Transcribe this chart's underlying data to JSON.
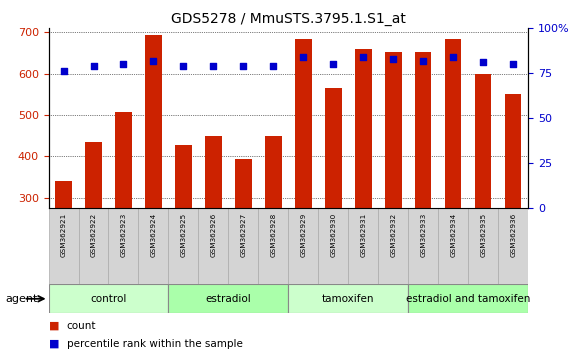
{
  "title": "GDS5278 / MmuSTS.3795.1.S1_at",
  "samples": [
    "GSM362921",
    "GSM362922",
    "GSM362923",
    "GSM362924",
    "GSM362925",
    "GSM362926",
    "GSM362927",
    "GSM362928",
    "GSM362929",
    "GSM362930",
    "GSM362931",
    "GSM362932",
    "GSM362933",
    "GSM362934",
    "GSM362935",
    "GSM362936"
  ],
  "counts": [
    340,
    435,
    507,
    693,
    428,
    450,
    395,
    450,
    685,
    565,
    660,
    653,
    652,
    685,
    600,
    550
  ],
  "percentile_ranks": [
    76,
    79,
    80,
    82,
    79,
    79,
    79,
    79,
    84,
    80,
    84,
    83,
    82,
    84,
    81,
    80
  ],
  "groups": [
    {
      "label": "control",
      "start": 0,
      "end": 4,
      "color": "#ccffcc"
    },
    {
      "label": "estradiol",
      "start": 4,
      "end": 8,
      "color": "#aaffaa"
    },
    {
      "label": "tamoxifen",
      "start": 8,
      "end": 12,
      "color": "#ccffcc"
    },
    {
      "label": "estradiol and tamoxifen",
      "start": 12,
      "end": 16,
      "color": "#aaffaa"
    }
  ],
  "bar_color": "#cc2200",
  "dot_color": "#0000cc",
  "ylim_left": [
    275,
    710
  ],
  "ylim_right": [
    0,
    100
  ],
  "yticks_left": [
    300,
    400,
    500,
    600,
    700
  ],
  "yticks_right": [
    0,
    25,
    50,
    75,
    100
  ],
  "bar_width": 0.55,
  "title_fontsize": 10,
  "sample_fontsize": 5.2,
  "group_fontsize": 7.5
}
